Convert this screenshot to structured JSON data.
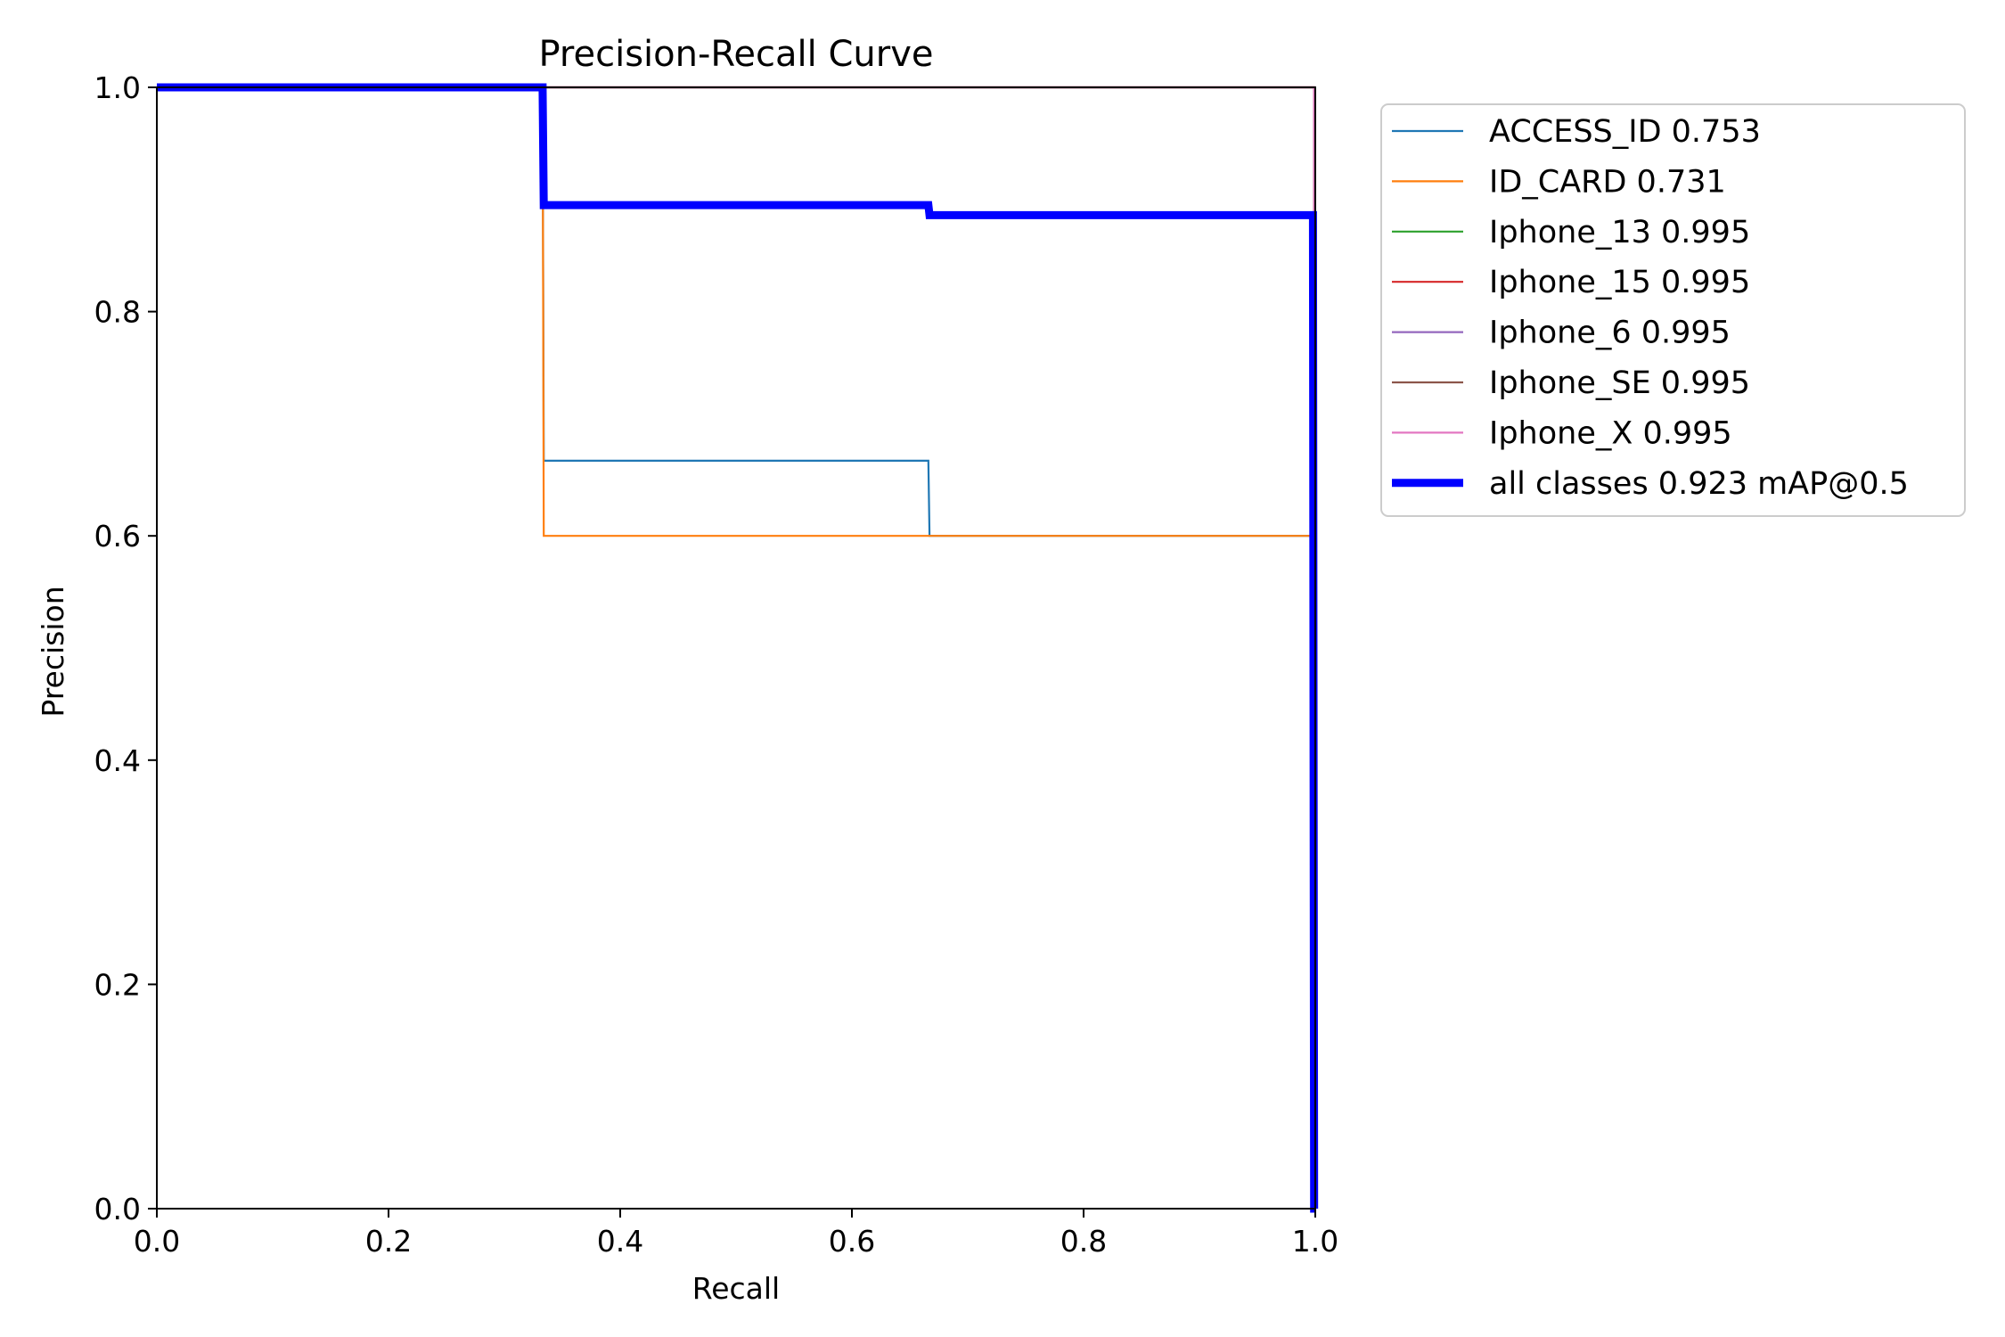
{
  "chart_data": {
    "type": "line",
    "title": "Precision-Recall Curve",
    "xlabel": "Recall",
    "ylabel": "Precision",
    "xlim": [
      0,
      1
    ],
    "ylim": [
      0,
      1
    ],
    "xticks": [
      "0.0",
      "0.2",
      "0.4",
      "0.6",
      "0.8",
      "1.0"
    ],
    "yticks": [
      "0.0",
      "0.2",
      "0.4",
      "0.6",
      "0.8",
      "1.0"
    ],
    "grid": false,
    "legend_position": "outside-right-top",
    "series": [
      {
        "name": "ACCESS_ID 0.753",
        "color": "#1f77b4",
        "x": [
          0,
          0.333,
          0.334,
          0.666,
          0.667,
          0.998,
          0.999,
          1.0
        ],
        "y": [
          1.0,
          1.0,
          0.667,
          0.667,
          0.6,
          0.6,
          0.0,
          0.0
        ]
      },
      {
        "name": "ID_CARD 0.731",
        "color": "#ff7f0e",
        "x": [
          0,
          0.333,
          0.334,
          0.998,
          0.999,
          1.0
        ],
        "y": [
          1.0,
          1.0,
          0.6,
          0.6,
          0.0,
          0.0
        ]
      },
      {
        "name": "Iphone_13 0.995",
        "color": "#2ca02c",
        "x": [
          0,
          0.999,
          1.0
        ],
        "y": [
          1.0,
          1.0,
          0.0
        ]
      },
      {
        "name": "Iphone_15 0.995",
        "color": "#d62728",
        "x": [
          0,
          0.999,
          1.0
        ],
        "y": [
          1.0,
          1.0,
          0.0
        ]
      },
      {
        "name": "Iphone_6 0.995",
        "color": "#9467bd",
        "x": [
          0,
          0.999,
          1.0
        ],
        "y": [
          1.0,
          1.0,
          0.0
        ]
      },
      {
        "name": "Iphone_SE 0.995",
        "color": "#8c564b",
        "x": [
          0,
          0.999,
          1.0
        ],
        "y": [
          1.0,
          1.0,
          0.0
        ]
      },
      {
        "name": "Iphone_X 0.995",
        "color": "#e377c2",
        "x": [
          0,
          0.999,
          1.0
        ],
        "y": [
          1.0,
          1.0,
          0.0
        ]
      },
      {
        "name": "all classes 0.923 mAP@0.5",
        "color": "#0000ff",
        "thick": true,
        "x": [
          0,
          0.333,
          0.334,
          0.666,
          0.667,
          0.998,
          0.999,
          1.0
        ],
        "y": [
          1.0,
          1.0,
          0.895,
          0.895,
          0.886,
          0.886,
          0.0,
          0.0
        ]
      }
    ]
  }
}
